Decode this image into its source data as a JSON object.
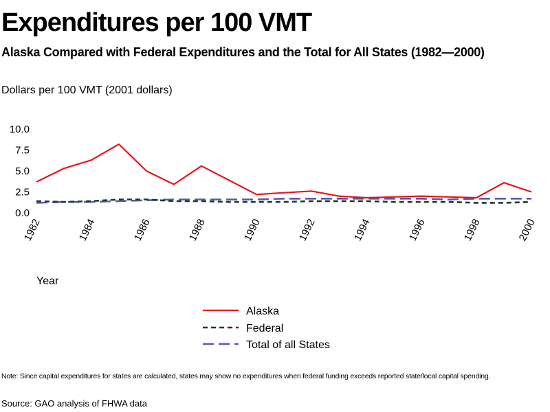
{
  "header": {
    "title": "Expenditures per 100 VMT",
    "subtitle": "Alaska Compared with Federal Expenditures and the Total for All States (1982—2000)",
    "units": "Dollars per 100 VMT (2001 dollars)"
  },
  "footer": {
    "note": "Note: Since capital expenditures for states are calculated, states may show no expenditures when federal funding exceeds reported state/local capital spending.",
    "source": "Source: GAO analysis of FHWA data"
  },
  "chart_data": {
    "type": "line",
    "title": "Expenditures per 100 VMT",
    "xlabel": "Year",
    "ylabel": "Dollars per 100 VMT (2001 dollars)",
    "x": [
      1982,
      1983,
      1984,
      1985,
      1986,
      1987,
      1988,
      1989,
      1990,
      1991,
      1992,
      1993,
      1994,
      1995,
      1996,
      1997,
      1998,
      1999,
      2000
    ],
    "x_tick_labels": [
      "1982",
      "1984",
      "1986",
      "1988",
      "1990",
      "1992",
      "1994",
      "1996",
      "1998",
      "2000"
    ],
    "y_tick_labels": [
      "10.0",
      "7.5",
      "5.0",
      "2.5",
      "0.0"
    ],
    "ylim": [
      0,
      10
    ],
    "grid": false,
    "legend_position": "bottom-center",
    "series": [
      {
        "name": "Alaska",
        "color": "#e8141b",
        "style": "solid",
        "values": [
          3.7,
          5.3,
          6.3,
          8.2,
          5.0,
          3.4,
          5.6,
          3.9,
          2.2,
          2.4,
          2.6,
          2.0,
          1.8,
          1.9,
          2.0,
          1.9,
          1.8,
          3.6,
          2.5
        ]
      },
      {
        "name": "Federal",
        "color": "#1e3a24",
        "style": "short-dash",
        "values": [
          1.4,
          1.3,
          1.4,
          1.6,
          1.6,
          1.4,
          1.4,
          1.3,
          1.3,
          1.3,
          1.4,
          1.4,
          1.4,
          1.3,
          1.3,
          1.3,
          1.2,
          1.2,
          1.3
        ]
      },
      {
        "name": "Total of all States",
        "color": "#5959a6",
        "style": "long-dash",
        "values": [
          1.2,
          1.3,
          1.3,
          1.4,
          1.5,
          1.6,
          1.6,
          1.6,
          1.6,
          1.7,
          1.7,
          1.7,
          1.7,
          1.7,
          1.7,
          1.6,
          1.7,
          1.7,
          1.7
        ]
      }
    ]
  }
}
